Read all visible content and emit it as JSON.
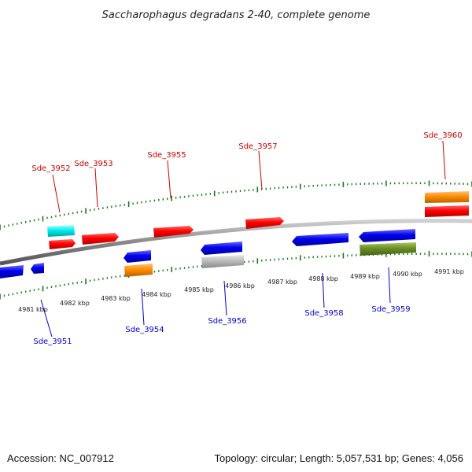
{
  "title": "Saccharophagus degradans 2-40, complete genome",
  "footer": {
    "accession": "Accession: NC_007912",
    "topology": "Topology: circular; Length: 5,057,531 bp; Genes: 4,056"
  },
  "colors": {
    "backbone": "#888888",
    "forward_strand": "#ff0000",
    "reverse_strand": "#0000ee",
    "rna": "#00eeee",
    "orange": "#ff8c00",
    "grey": "#bbbbbb",
    "olive": "#6b8e23",
    "ticks": "#1a7a1a",
    "label_top": "#cc0000",
    "label_bottom": "#0000cc"
  },
  "kbp_labels": [
    "4981 kbp",
    "4982 kbp",
    "4983 kbp",
    "4984 kbp",
    "4985 kbp",
    "4986 kbp",
    "4987 kbp",
    "4988 kbp",
    "4989 kbp",
    "4990 kbp",
    "4991 kbp"
  ],
  "top_labels": [
    "Sde_3952",
    "Sde_3953",
    "Sde_3955",
    "Sde_3957",
    "Sde_3960"
  ],
  "bottom_labels": [
    "Sde_3951",
    "Sde_3954",
    "Sde_3956",
    "Sde_3958",
    "Sde_3959"
  ]
}
